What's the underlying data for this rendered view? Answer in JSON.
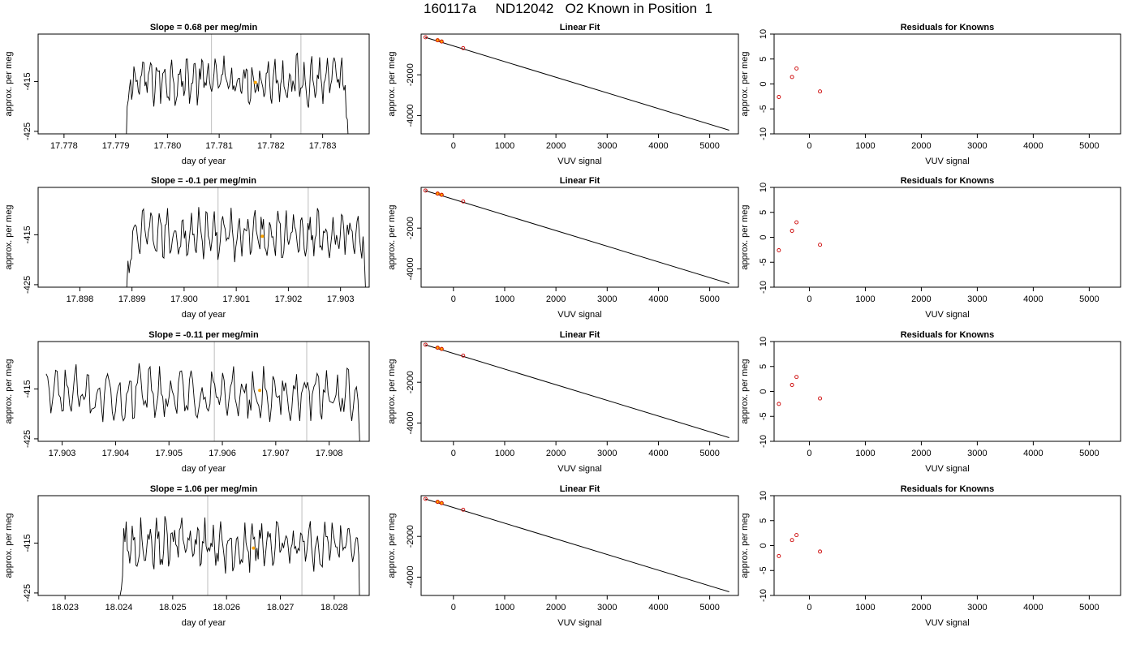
{
  "page": {
    "title": "160117a     ND12042   O2 Known in Position  1"
  },
  "colors": {
    "trace": "#000000",
    "marker": "#FFA500",
    "time_lines": "#C8C8C8",
    "points": "#CC0000"
  },
  "chart_data": [
    {
      "type": "line",
      "row": 1,
      "title": "Slope =  0.68  per meg/min",
      "xlabel": "day of year",
      "ylabel": "approx. per meg",
      "xlim": [
        17.7775,
        17.7839
      ],
      "ylim": [
        -425.5,
        -405.5
      ],
      "xticks": [
        "17.778",
        "17.779",
        "17.780",
        "17.781",
        "17.782",
        "17.783"
      ],
      "yticks": [
        "-425",
        "-415"
      ],
      "trace_range": [
        17.7792,
        17.7835
      ],
      "trace_base": -414.7,
      "trace_amp": 4.3,
      "vlines": [
        17.78085,
        17.78258
      ],
      "marker": [
        17.7817,
        -415.2
      ]
    },
    {
      "type": "scatter_line",
      "row": 1,
      "title": "Linear Fit",
      "xlabel": "VUV signal",
      "ylabel": "approx. per meg",
      "xlim": [
        -630,
        5560
      ],
      "ylim": [
        -4900,
        0
      ],
      "xticks": [
        "0",
        "1000",
        "2000",
        "3000",
        "4000",
        "5000"
      ],
      "yticks": [
        "-4000",
        "-2000"
      ],
      "fit_line": [
        [
          -550,
          -160
        ],
        [
          5380,
          -4720
        ]
      ],
      "points": [
        [
          -545,
          -155
        ],
        [
          -310,
          -305
        ],
        [
          -230,
          -365
        ],
        [
          190,
          -690
        ]
      ],
      "marker_points": [
        [
          -305,
          -300
        ],
        [
          -230,
          -360
        ]
      ]
    },
    {
      "type": "scatter",
      "row": 1,
      "title": "Residuals for Knowns",
      "xlabel": "VUV signal",
      "ylabel": "approx. per meg",
      "xlim": [
        -630,
        5560
      ],
      "ylim": [
        -10,
        10
      ],
      "xticks": [
        "0",
        "1000",
        "2000",
        "3000",
        "4000",
        "5000"
      ],
      "yticks": [
        "-10",
        "-5",
        "0",
        "5",
        "10"
      ],
      "points": [
        [
          -545,
          -2.6
        ],
        [
          -310,
          1.4
        ],
        [
          -230,
          3.1
        ],
        [
          190,
          -1.5
        ]
      ]
    },
    {
      "type": "line",
      "row": 2,
      "title": "Slope =  -0.1  per meg/min",
      "xlabel": "day of year",
      "ylabel": "approx. per meg",
      "xlim": [
        17.8972,
        17.90355
      ],
      "ylim": [
        -425.5,
        -405.5
      ],
      "xticks": [
        "17.898",
        "17.899",
        "17.900",
        "17.901",
        "17.902",
        "17.903"
      ],
      "yticks": [
        "-425",
        "-415"
      ],
      "trace_range": [
        17.8989,
        17.9035
      ],
      "trace_base": -415.0,
      "trace_amp": 4.2,
      "vlines": [
        17.90065,
        17.90238
      ],
      "marker": [
        17.9015,
        -415.3
      ]
    },
    {
      "type": "scatter_line",
      "row": 2,
      "title": "Linear Fit",
      "xlabel": "VUV signal",
      "ylabel": "approx. per meg",
      "xlim": [
        -630,
        5560
      ],
      "ylim": [
        -4900,
        0
      ],
      "xticks": [
        "0",
        "1000",
        "2000",
        "3000",
        "4000",
        "5000"
      ],
      "yticks": [
        "-4000",
        "-2000"
      ],
      "fit_line": [
        [
          -550,
          -160
        ],
        [
          5380,
          -4720
        ]
      ],
      "points": [
        [
          -545,
          -155
        ],
        [
          -310,
          -305
        ],
        [
          -230,
          -365
        ],
        [
          190,
          -690
        ]
      ],
      "marker_points": [
        [
          -305,
          -300
        ],
        [
          -230,
          -360
        ]
      ]
    },
    {
      "type": "scatter",
      "row": 2,
      "title": "Residuals for Knowns",
      "xlabel": "VUV signal",
      "ylabel": "approx. per meg",
      "xlim": [
        -630,
        5560
      ],
      "ylim": [
        -10,
        10
      ],
      "xticks": [
        "0",
        "1000",
        "2000",
        "3000",
        "4000",
        "5000"
      ],
      "yticks": [
        "-10",
        "-5",
        "0",
        "5",
        "10"
      ],
      "points": [
        [
          -545,
          -2.6
        ],
        [
          -310,
          1.3
        ],
        [
          -230,
          3.0
        ],
        [
          190,
          -1.5
        ]
      ]
    },
    {
      "type": "line",
      "row": 3,
      "title": "Slope =  -0.11  per meg/min",
      "xlabel": "day of year",
      "ylabel": "approx. per meg",
      "xlim": [
        17.90255,
        17.90875
      ],
      "ylim": [
        -425.5,
        -405.5
      ],
      "xticks": [
        "17.903",
        "17.904",
        "17.905",
        "17.906",
        "17.907",
        "17.908"
      ],
      "yticks": [
        "-425",
        "-415"
      ],
      "trace_range": [
        17.9027,
        17.9086
      ],
      "trace_base": -416.0,
      "trace_amp": 4.6,
      "vlines": [
        17.90585,
        17.90758
      ],
      "marker": [
        17.9067,
        -415.3
      ]
    },
    {
      "type": "scatter_line",
      "row": 3,
      "title": "Linear Fit",
      "xlabel": "VUV signal",
      "ylabel": "approx. per meg",
      "xlim": [
        -630,
        5560
      ],
      "ylim": [
        -4900,
        0
      ],
      "xticks": [
        "0",
        "1000",
        "2000",
        "3000",
        "4000",
        "5000"
      ],
      "yticks": [
        "-4000",
        "-2000"
      ],
      "fit_line": [
        [
          -550,
          -160
        ],
        [
          5380,
          -4720
        ]
      ],
      "points": [
        [
          -545,
          -155
        ],
        [
          -310,
          -305
        ],
        [
          -230,
          -365
        ],
        [
          190,
          -690
        ]
      ],
      "marker_points": [
        [
          -305,
          -300
        ],
        [
          -230,
          -360
        ]
      ]
    },
    {
      "type": "scatter",
      "row": 3,
      "title": "Residuals for Knowns",
      "xlabel": "VUV signal",
      "ylabel": "approx. per meg",
      "xlim": [
        -630,
        5560
      ],
      "ylim": [
        -10,
        10
      ],
      "xticks": [
        "0",
        "1000",
        "2000",
        "3000",
        "4000",
        "5000"
      ],
      "yticks": [
        "-10",
        "-5",
        "0",
        "5",
        "10"
      ],
      "points": [
        [
          -545,
          -2.5
        ],
        [
          -310,
          1.3
        ],
        [
          -230,
          2.9
        ],
        [
          190,
          -1.4
        ]
      ]
    },
    {
      "type": "line",
      "row": 4,
      "title": "Slope =  1.06  per meg/min",
      "xlabel": "day of year",
      "ylabel": "approx. per meg",
      "xlim": [
        18.0225,
        18.02865
      ],
      "ylim": [
        -425.5,
        -405.5
      ],
      "xticks": [
        "18.023",
        "18.024",
        "18.025",
        "18.026",
        "18.027",
        "18.028"
      ],
      "yticks": [
        "-425",
        "-415"
      ],
      "trace_range": [
        18.024,
        18.0285
      ],
      "trace_base": -415.3,
      "trace_amp": 4.4,
      "vlines": [
        18.02565,
        18.0274
      ],
      "marker": [
        18.0265,
        -416.0
      ]
    },
    {
      "type": "scatter_line",
      "row": 4,
      "title": "Linear Fit",
      "xlabel": "VUV signal",
      "ylabel": "approx. per meg",
      "xlim": [
        -630,
        5560
      ],
      "ylim": [
        -4900,
        0
      ],
      "xticks": [
        "0",
        "1000",
        "2000",
        "3000",
        "4000",
        "5000"
      ],
      "yticks": [
        "-4000",
        "-2000"
      ],
      "fit_line": [
        [
          -550,
          -160
        ],
        [
          5380,
          -4720
        ]
      ],
      "points": [
        [
          -545,
          -155
        ],
        [
          -310,
          -305
        ],
        [
          -230,
          -365
        ],
        [
          190,
          -690
        ]
      ],
      "marker_points": [
        [
          -305,
          -300
        ],
        [
          -230,
          -360
        ]
      ]
    },
    {
      "type": "scatter",
      "row": 4,
      "title": "Residuals for Knowns",
      "xlabel": "VUV signal",
      "ylabel": "approx. per meg",
      "xlim": [
        -630,
        5560
      ],
      "ylim": [
        -10,
        10
      ],
      "xticks": [
        "0",
        "1000",
        "2000",
        "3000",
        "4000",
        "5000"
      ],
      "yticks": [
        "-10",
        "-5",
        "0",
        "5",
        "10"
      ],
      "points": [
        [
          -545,
          -2.1
        ],
        [
          -310,
          1.1
        ],
        [
          -230,
          2.1
        ],
        [
          190,
          -1.2
        ]
      ]
    }
  ]
}
